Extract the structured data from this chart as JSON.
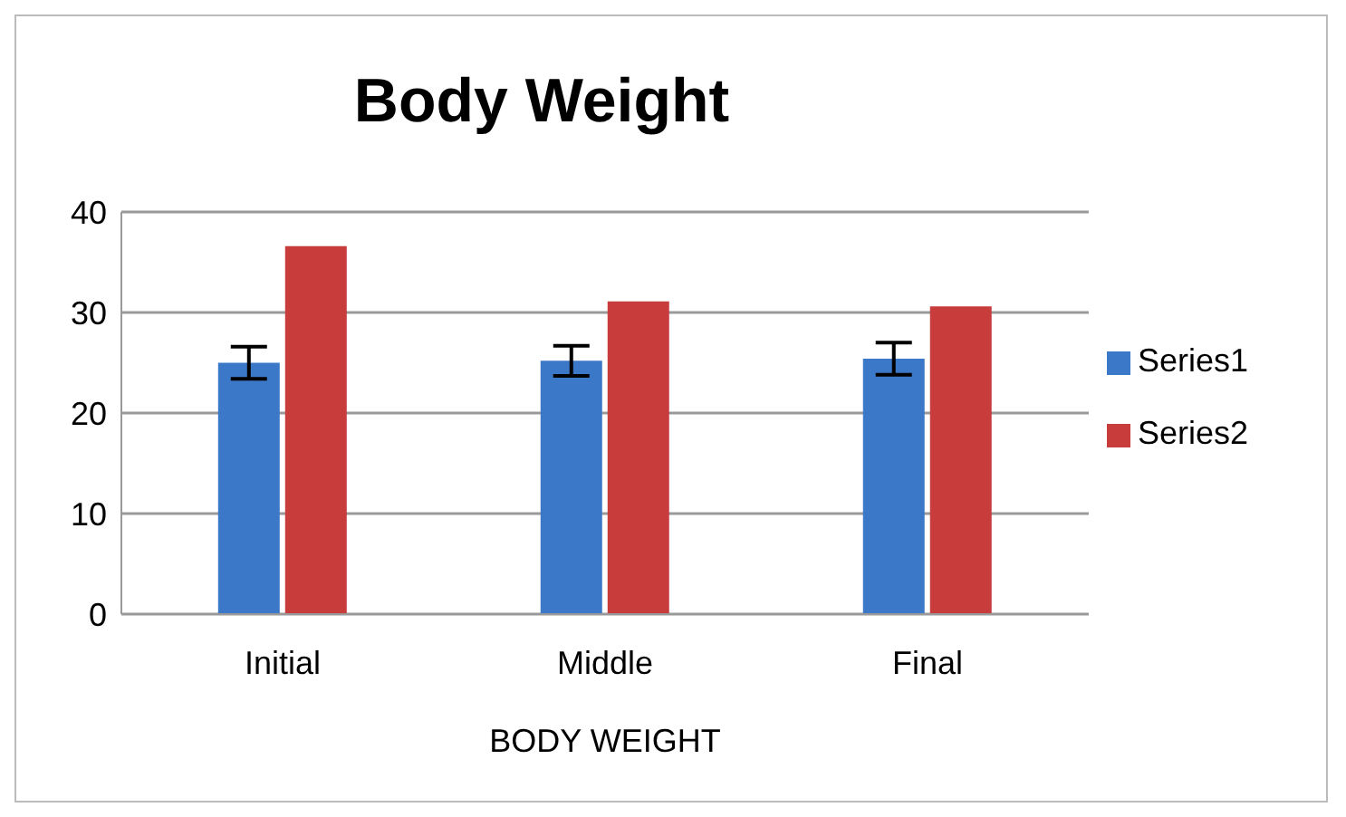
{
  "chart_data": {
    "type": "bar",
    "title": "Body Weight",
    "xlabel": "BODY WEIGHT",
    "categories": [
      "Initial",
      "Middle",
      "Final"
    ],
    "series": [
      {
        "name": "Series1",
        "color": "#3c78c8",
        "values": [
          25,
          25.2,
          25.4
        ],
        "errors": [
          1.6,
          1.5,
          1.6
        ]
      },
      {
        "name": "Series2",
        "color": "#c83c3c",
        "values": [
          36.6,
          31.1,
          30.6
        ]
      }
    ],
    "ylim": [
      0,
      40
    ],
    "yticks": [
      0,
      10,
      20,
      30,
      40
    ],
    "grid": "y",
    "legend": "right"
  }
}
